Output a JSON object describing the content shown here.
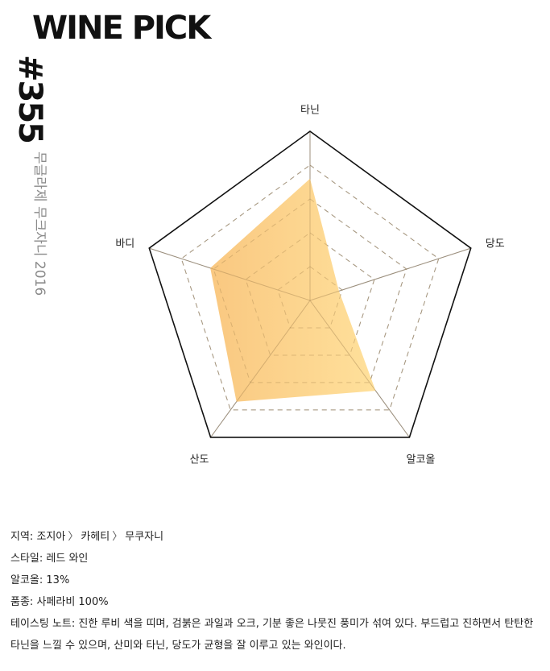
{
  "brand": "WINE PICK",
  "pick_number": "#355",
  "wine_name": "무글라제 무크자니 2016",
  "chart_data": {
    "type": "radar",
    "axes": [
      "타닌",
      "당도",
      "알코올",
      "산도",
      "바디"
    ],
    "scale_max": 5,
    "rings": 5,
    "values": [
      3.6,
      0.9,
      3.3,
      3.7,
      3.1
    ],
    "fill_gradient": [
      "#f9c57a",
      "#ffdf96"
    ],
    "grid_color": "#999999"
  },
  "info": {
    "region_label": "지역: ",
    "region": [
      "조지아",
      "카헤티",
      "무쿠자니"
    ],
    "region_sep": "〉",
    "style_label": "스타일: ",
    "style": "레드 와인",
    "alcohol_label": "알코올: ",
    "alcohol": "13%",
    "grape_label": "품종: ",
    "grape": "사페라비 100%",
    "note_label": "테이스팅 노트: ",
    "note": "진한 루비 색을 띠며, 검붉은 과일과 오크, 기분 좋은 나뭇진 풍미가 섞여 있다. 부드럽고 진하면서 탄탄한 타닌을 느낄 수 있으며, 산미와 타닌, 당도가 균형을 잘 이루고 있는 와인이다."
  }
}
